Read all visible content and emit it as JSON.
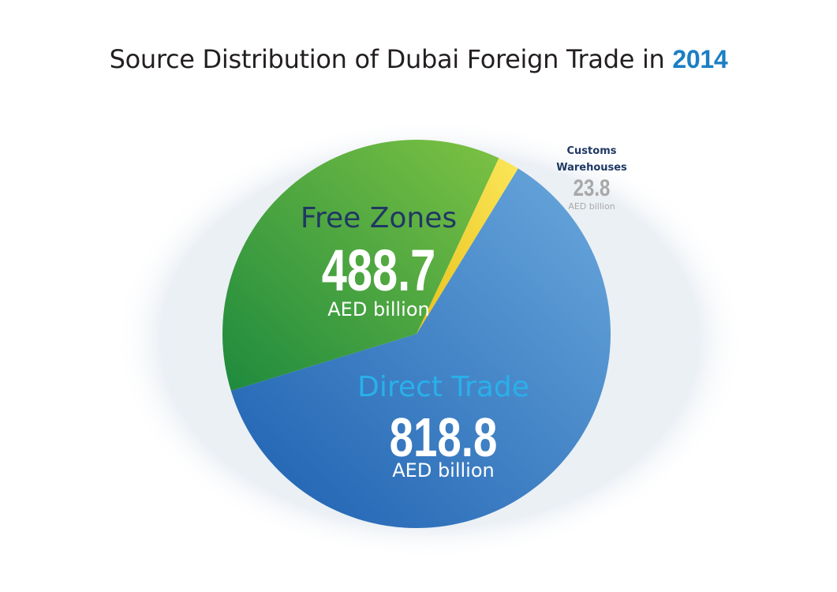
{
  "title": {
    "text": "Source Distribution of Dubai Foreign Trade in ",
    "year": "2014"
  },
  "colors": {
    "free_zones": "#3fa442",
    "direct_trade": "#3a86cf",
    "customs_warehouses": "#f5dc3a",
    "year_accent": "#1b7fc4"
  },
  "chart_data": {
    "type": "pie",
    "title": "Source Distribution of Dubai Foreign Trade in 2014",
    "unit": "AED billion",
    "slices": [
      {
        "label": "Direct Trade",
        "value": 818.8,
        "value_text": "818.8",
        "unit": "AED billion"
      },
      {
        "label": "Free Zones",
        "value": 488.7,
        "value_text": "488.7",
        "unit": "AED billion"
      },
      {
        "label": "Customs Warehouses",
        "value": 23.8,
        "value_text": "23.8",
        "unit": "AED billion"
      }
    ]
  }
}
